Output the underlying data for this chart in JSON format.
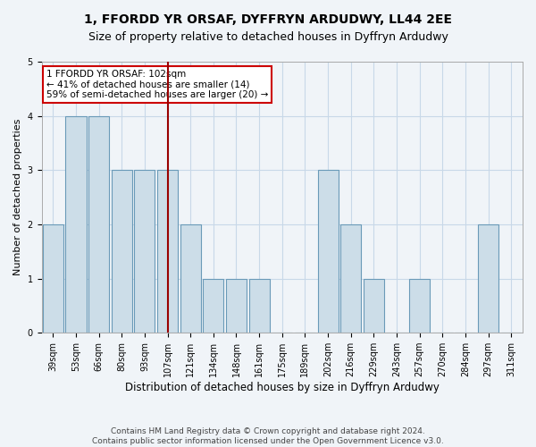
{
  "title_line1": "1, FFORDD YR ORSAF, DYFFRYN ARDUDWY, LL44 2EE",
  "title_line2": "Size of property relative to detached houses in Dyffryn Ardudwy",
  "xlabel": "Distribution of detached houses by size in Dyffryn Ardudwy",
  "ylabel": "Number of detached properties",
  "categories": [
    "39sqm",
    "53sqm",
    "66sqm",
    "80sqm",
    "93sqm",
    "107sqm",
    "121sqm",
    "134sqm",
    "148sqm",
    "161sqm",
    "175sqm",
    "189sqm",
    "202sqm",
    "216sqm",
    "229sqm",
    "243sqm",
    "257sqm",
    "270sqm",
    "284sqm",
    "297sqm",
    "311sqm"
  ],
  "values": [
    2,
    4,
    4,
    3,
    3,
    3,
    2,
    1,
    1,
    1,
    0,
    0,
    3,
    2,
    1,
    0,
    1,
    0,
    0,
    2,
    0
  ],
  "bar_color": "#ccdde8",
  "bar_edge_color": "#6a9ab8",
  "highlight_index": 5,
  "highlight_line_color": "#990000",
  "ylim": [
    0,
    5
  ],
  "yticks": [
    0,
    1,
    2,
    3,
    4,
    5
  ],
  "annotation_text": "1 FFORDD YR ORSAF: 102sqm\n← 41% of detached houses are smaller (14)\n59% of semi-detached houses are larger (20) →",
  "annotation_box_color": "#ffffff",
  "annotation_box_edge": "#cc0000",
  "footer_line1": "Contains HM Land Registry data © Crown copyright and database right 2024.",
  "footer_line2": "Contains public sector information licensed under the Open Government Licence v3.0.",
  "grid_color": "#c8d8e8",
  "background_color": "#f0f4f8",
  "title1_fontsize": 10,
  "title2_fontsize": 9,
  "ylabel_fontsize": 8,
  "xlabel_fontsize": 8.5,
  "tick_fontsize": 7,
  "footer_fontsize": 6.5,
  "ann_fontsize": 7.5
}
